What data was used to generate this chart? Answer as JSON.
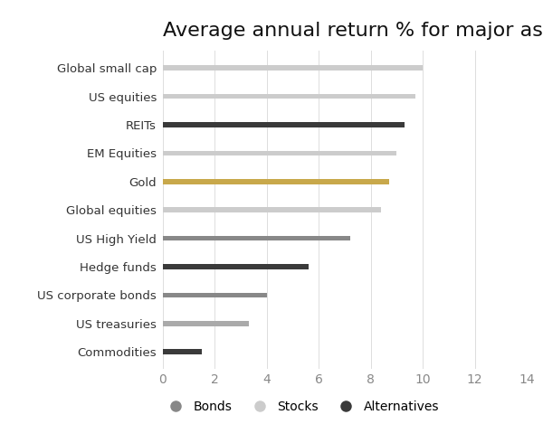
{
  "title": "Average annual return % for major asset classes",
  "categories": [
    "Commodities",
    "US treasuries",
    "US corporate bonds",
    "Hedge funds",
    "US High Yield",
    "Global equities",
    "Gold",
    "EM Equities",
    "REITs",
    "US equities",
    "Global small cap"
  ],
  "values": [
    1.5,
    3.3,
    4.0,
    5.6,
    7.2,
    8.4,
    8.7,
    9.0,
    9.3,
    9.7,
    10.0
  ],
  "colors": [
    "#3a3a3a",
    "#aaaaaa",
    "#888888",
    "#3a3a3a",
    "#888888",
    "#cccccc",
    "#c8a84b",
    "#cccccc",
    "#3a3a3a",
    "#cccccc",
    "#cccccc"
  ],
  "bar_height": 0.18,
  "xlim": [
    0,
    14
  ],
  "xticks": [
    0,
    2,
    4,
    6,
    8,
    10,
    12,
    14
  ],
  "background_color": "#ffffff",
  "title_fontsize": 16,
  "axis_label_fontsize": 10,
  "legend_items": [
    {
      "label": "Bonds",
      "color": "#888888"
    },
    {
      "label": "Stocks",
      "color": "#cccccc"
    },
    {
      "label": "Alternatives",
      "color": "#3a3a3a"
    }
  ]
}
